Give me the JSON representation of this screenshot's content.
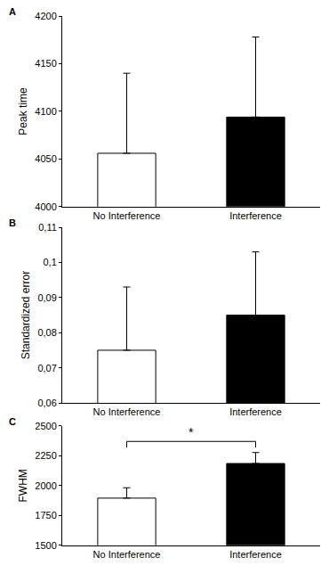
{
  "chart_data": [
    {
      "type": "bar",
      "title": "A",
      "y_label": "Peak time",
      "categories": [
        "No Interference",
        "Interference"
      ],
      "values": [
        4056,
        4094
      ],
      "errors": [
        84,
        84
      ],
      "colors": [
        "#ffffff",
        "#000000"
      ],
      "ylim": [
        4000,
        4200
      ],
      "yticks": [
        4000,
        4050,
        4100,
        4150,
        4200
      ],
      "grid": false
    },
    {
      "type": "bar",
      "title": "B",
      "y_label": "Standardized error",
      "categories": [
        "No Interference",
        "Interference"
      ],
      "values": [
        0.075,
        0.085
      ],
      "errors": [
        0.018,
        0.018
      ],
      "colors": [
        "#ffffff",
        "#000000"
      ],
      "ylim": [
        0.06,
        0.11
      ],
      "yticks": [
        {
          "value": 0.06,
          "label": "0,06"
        },
        {
          "value": 0.07,
          "label": "0,07"
        },
        {
          "value": 0.08,
          "label": "0,08"
        },
        {
          "value": 0.09,
          "label": "0,09"
        },
        {
          "value": 0.1,
          "label": "0,1"
        },
        {
          "value": 0.11,
          "label": "0,11"
        }
      ],
      "grid": false
    },
    {
      "type": "bar",
      "title": "C",
      "y_label": "FWHM",
      "categories": [
        "No Interference",
        "Interference"
      ],
      "values": [
        1895,
        2185
      ],
      "errors": [
        87,
        92
      ],
      "colors": [
        "#ffffff",
        "#000000"
      ],
      "ylim": [
        1500,
        2500
      ],
      "yticks": [
        1500,
        1750,
        2000,
        2250,
        2500
      ],
      "grid": false,
      "annotations": [
        {
          "text": "*",
          "y": 2370
        }
      ]
    }
  ]
}
